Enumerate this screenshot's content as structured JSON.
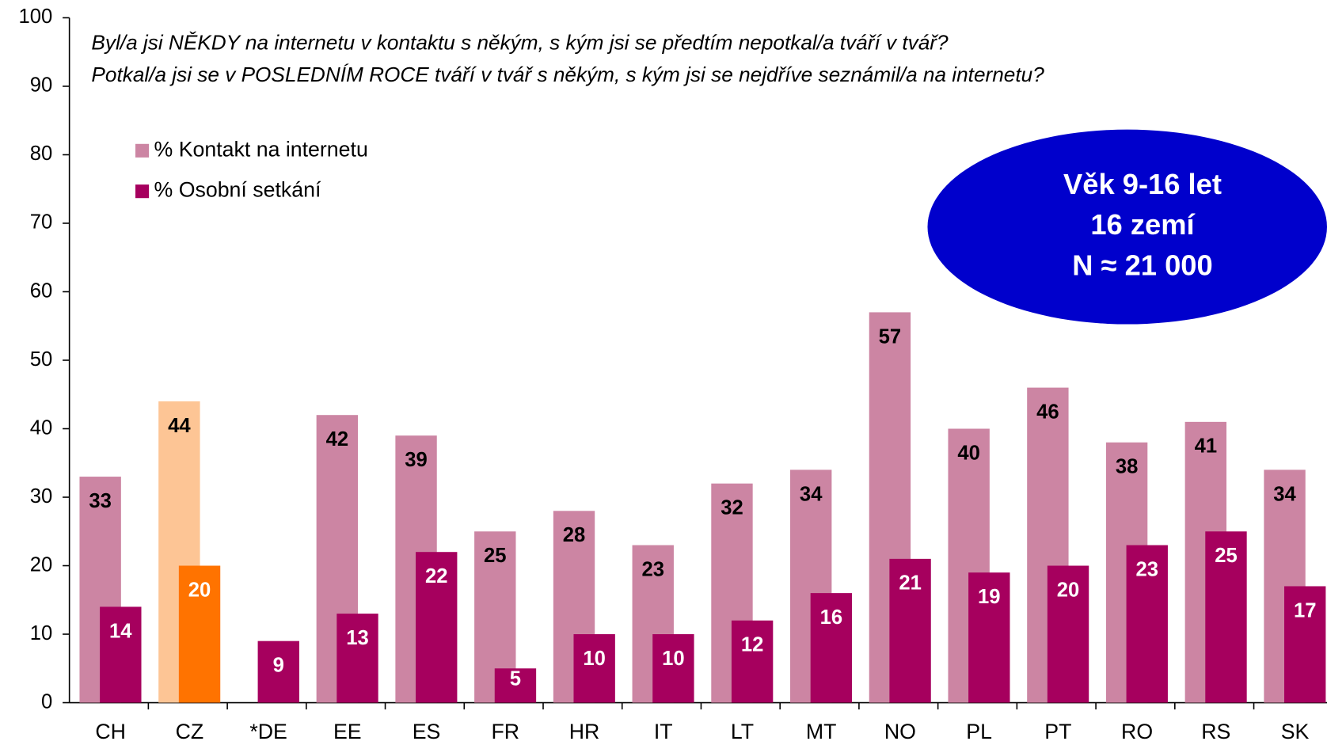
{
  "chart_data": {
    "type": "bar",
    "title_lines": [
      "Byl/a jsi NĚKDY na internetu v kontaktu s někým, s kým jsi se předtím nepotkal/a tváří v tvář?",
      "Potkal/a jsi se v POSLEDNÍM ROCE tváří v tvář s někým, s kým jsi se nejdříve seznámil/a na internetu?"
    ],
    "annotation_lines": [
      "Věk 9-16 let",
      "16 zemí",
      "N ≈ 21 000"
    ],
    "annotation_color": "#0000cc",
    "categories": [
      "CH",
      "CZ",
      "*DE",
      "EE",
      "ES",
      "FR",
      "HR",
      "IT",
      "LT",
      "MT",
      "NO",
      "PL",
      "PT",
      "RO",
      "RS",
      "SK"
    ],
    "series": [
      {
        "name": "% Kontakt na internetu",
        "color": "#cc85a3",
        "highlight_color": "#fdc595",
        "values": [
          33,
          44,
          null,
          42,
          39,
          25,
          28,
          23,
          32,
          34,
          57,
          40,
          46,
          38,
          41,
          34
        ]
      },
      {
        "name": "% Osobní setkání",
        "color": "#a6005e",
        "highlight_color": "#ff7300",
        "values": [
          14,
          20,
          9,
          13,
          22,
          5,
          10,
          10,
          12,
          16,
          21,
          19,
          20,
          23,
          25,
          17
        ]
      }
    ],
    "highlight_index": 1,
    "ylim": [
      0,
      100
    ],
    "yticks": [
      0,
      10,
      20,
      30,
      40,
      50,
      60,
      70,
      80,
      90,
      100
    ],
    "legend": "top-left"
  }
}
